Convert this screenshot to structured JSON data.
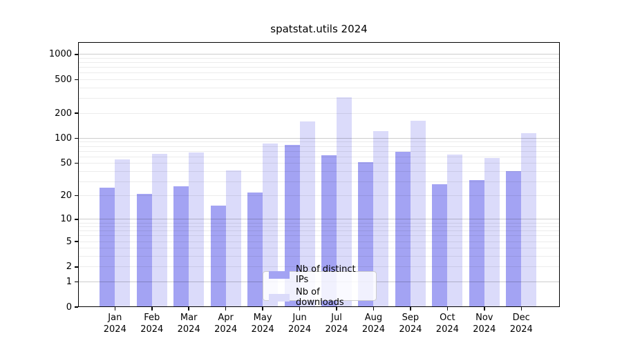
{
  "title": "spatstat.utils 2024",
  "chart_data": {
    "type": "bar",
    "title": "spatstat.utils 2024",
    "x_categories": [
      "Jan",
      "Feb",
      "Mar",
      "Apr",
      "May",
      "Jun",
      "Jul",
      "Aug",
      "Sep",
      "Oct",
      "Nov",
      "Dec"
    ],
    "x_year": "2024",
    "series": [
      {
        "name": "Nb of distinct IPs",
        "color": "#a3a3f3",
        "values": [
          25,
          21,
          26,
          15,
          22,
          84,
          63,
          52,
          69,
          28,
          31,
          40
        ]
      },
      {
        "name": "Nb of downloads",
        "color": "#dbdbfa",
        "values": [
          56,
          65,
          67,
          41,
          87,
          158,
          310,
          122,
          162,
          64,
          58,
          115
        ]
      }
    ],
    "y_scale": "log10(1+x)",
    "ylim": [
      0,
      1400
    ],
    "y_ticks": [
      0,
      1,
      2,
      5,
      10,
      20,
      50,
      100,
      200,
      500,
      1000
    ],
    "y_major_gridlines": [
      1,
      10,
      100,
      1000
    ],
    "y_minor_gridlines": [
      2,
      3,
      4,
      5,
      6,
      7,
      8,
      9,
      20,
      30,
      40,
      50,
      60,
      70,
      80,
      90,
      200,
      300,
      400,
      500,
      600,
      700,
      800,
      900
    ],
    "grid": true,
    "legend_position": "lower center"
  },
  "colors": {
    "background": "#ffffff",
    "bar_distinct_ips": "#a3a3f3",
    "bar_downloads": "#dbdbfa",
    "major_grid": "#cccccc",
    "minor_grid": "#ececec",
    "spine": "#000000",
    "legend_border": "#cccccc"
  }
}
